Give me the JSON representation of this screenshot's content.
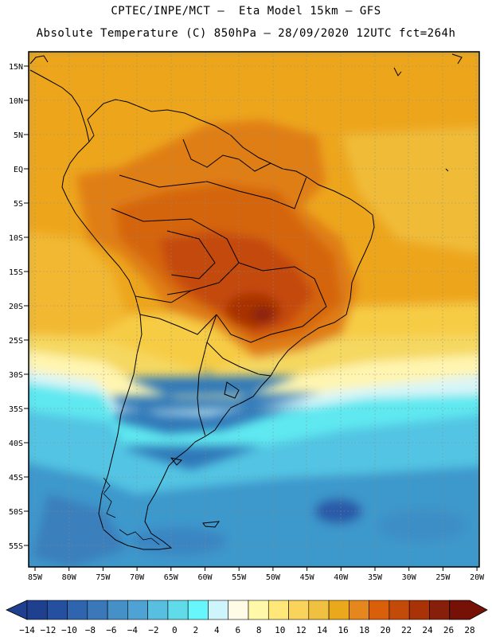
{
  "header": {
    "line1": "CPTEC/INPE/MCT –  Eta Model 15km – GFS",
    "line2": "Absolute Temperature (C) 850hPa – 28/09/2020 12UTC fct=264h"
  },
  "map": {
    "lat_labels": [
      "15N",
      "10N",
      "5N",
      "EQ",
      "5S",
      "10S",
      "15S",
      "20S",
      "25S",
      "30S",
      "35S",
      "40S",
      "45S",
      "50S",
      "55S"
    ],
    "lon_labels": [
      "85W",
      "80W",
      "75W",
      "70W",
      "65W",
      "60W",
      "55W",
      "50W",
      "45W",
      "40W",
      "35W",
      "30W",
      "25W",
      "20W"
    ]
  },
  "colorbar": {
    "labels": [
      "-14",
      "-12",
      "-10",
      "-8",
      "-6",
      "-4",
      "-2",
      "0",
      "2",
      "4",
      "6",
      "8",
      "10",
      "12",
      "14",
      "16",
      "18",
      "20",
      "22",
      "24",
      "26",
      "28"
    ],
    "colors": [
      "#1f3f8f",
      "#25509f",
      "#2f64ae",
      "#3a78ba",
      "#4690c8",
      "#4fa3d4",
      "#58bfe0",
      "#5fdbe9",
      "#66f6fb",
      "#cdf5fb",
      "#fffbe6",
      "#fff8a8",
      "#ffe77a",
      "#f9d35a",
      "#f0c040",
      "#eaa81c",
      "#e6871e",
      "#d95f0a",
      "#c44a0a",
      "#a93206",
      "#86200a",
      "#751106"
    ]
  }
}
